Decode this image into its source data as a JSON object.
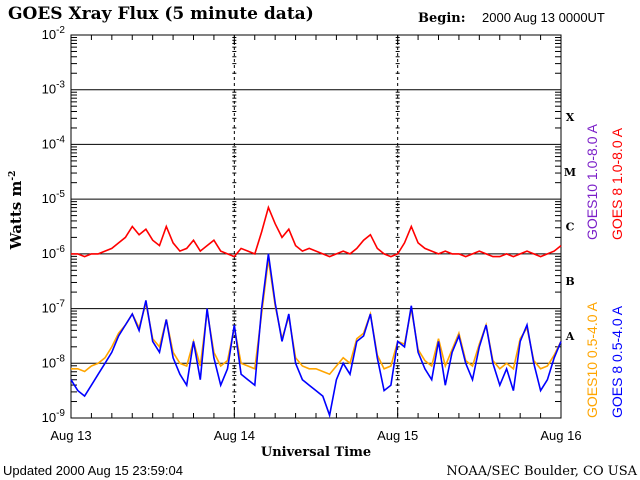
{
  "chart_data": {
    "type": "line",
    "title": "GOES Xray Flux (5 minute data)",
    "begin_label": "Begin:",
    "begin_value": "2000 Aug 13 0000UT",
    "xlabel": "Universal Time",
    "ylabel": "Watts m",
    "ylabel_exp": "-2",
    "yscale": "log",
    "ylim": [
      1e-09,
      0.01
    ],
    "y_ticks": [
      {
        "base": "10",
        "exp": "-2"
      },
      {
        "base": "10",
        "exp": "-3"
      },
      {
        "base": "10",
        "exp": "-4"
      },
      {
        "base": "10",
        "exp": "-5"
      },
      {
        "base": "10",
        "exp": "-6"
      },
      {
        "base": "10",
        "exp": "-7"
      },
      {
        "base": "10",
        "exp": "-8"
      },
      {
        "base": "10",
        "exp": "-9"
      }
    ],
    "x_ticks": [
      "Aug 13",
      "Aug 14",
      "Aug 15",
      "Aug 16"
    ],
    "xlim_hours": [
      0,
      72
    ],
    "grid": true,
    "flare_classes": [
      "X",
      "M",
      "C",
      "B",
      "A"
    ],
    "x_unit": "hours since 2000 Aug 13 0000UT",
    "series": [
      {
        "name": "GOES10 1.0-8.0 A",
        "color": "#7b1fc8",
        "values": []
      },
      {
        "name": "GOES 8 1.0-8.0 A",
        "color": "#ff0000",
        "log10_values": [
          -6.0,
          -6.0,
          -6.05,
          -6.0,
          -6.0,
          -5.95,
          -5.9,
          -5.8,
          -5.7,
          -5.5,
          -5.65,
          -5.55,
          -5.75,
          -5.85,
          -5.5,
          -5.8,
          -5.95,
          -5.9,
          -5.75,
          -5.95,
          -5.85,
          -5.75,
          -5.95,
          -6.0,
          -6.05,
          -5.9,
          -5.95,
          -6.0,
          -5.6,
          -5.15,
          -5.45,
          -5.7,
          -5.55,
          -5.85,
          -5.95,
          -5.9,
          -5.95,
          -6.0,
          -6.05,
          -6.0,
          -5.95,
          -6.0,
          -5.9,
          -5.75,
          -5.65,
          -5.9,
          -6.0,
          -6.05,
          -6.0,
          -5.8,
          -5.5,
          -5.8,
          -5.9,
          -5.95,
          -6.0,
          -5.95,
          -6.0,
          -6.0,
          -6.05,
          -6.0,
          -5.95,
          -6.0,
          -6.05,
          -6.05,
          -6.0,
          -6.05,
          -6.0,
          -5.95,
          -6.0,
          -6.05,
          -6.0,
          -5.95,
          -5.85
        ]
      },
      {
        "name": "GOES10 0.5-4.0 A",
        "color": "#ffa500",
        "log10_values": [
          -8.1,
          -8.1,
          -8.15,
          -8.05,
          -8.0,
          -7.9,
          -7.7,
          -7.45,
          -7.3,
          -7.1,
          -7.35,
          -6.9,
          -7.55,
          -7.7,
          -7.2,
          -7.8,
          -8.0,
          -8.05,
          -7.6,
          -8.05,
          -7.05,
          -7.8,
          -8.05,
          -7.95,
          -7.35,
          -8.0,
          -8.05,
          -8.1,
          -7.1,
          -6.1,
          -6.95,
          -7.55,
          -7.15,
          -7.9,
          -8.05,
          -8.1,
          -8.1,
          -8.15,
          -8.2,
          -8.05,
          -7.9,
          -8.0,
          -7.55,
          -7.45,
          -7.1,
          -7.85,
          -8.1,
          -8.05,
          -7.6,
          -7.65,
          -7.0,
          -7.75,
          -7.95,
          -8.05,
          -7.55,
          -8.05,
          -7.75,
          -7.45,
          -7.95,
          -8.05,
          -7.65,
          -7.3,
          -7.95,
          -8.1,
          -8.0,
          -8.1,
          -7.55,
          -7.35,
          -7.95,
          -8.1,
          -8.05,
          -7.85,
          -7.6
        ]
      },
      {
        "name": "GOES 8 0.5-4.0 A",
        "color": "#0000ff",
        "log10_values": [
          -8.3,
          -8.5,
          -8.6,
          -8.4,
          -8.2,
          -8.0,
          -7.8,
          -7.5,
          -7.3,
          -7.1,
          -7.4,
          -6.85,
          -7.6,
          -7.8,
          -7.2,
          -7.9,
          -8.2,
          -8.4,
          -7.6,
          -8.3,
          -7.0,
          -7.9,
          -8.4,
          -8.1,
          -7.3,
          -8.2,
          -8.3,
          -8.4,
          -7.0,
          -6.0,
          -6.9,
          -7.6,
          -7.1,
          -8.0,
          -8.3,
          -8.4,
          -8.5,
          -8.6,
          -8.95,
          -8.3,
          -8.0,
          -8.2,
          -7.6,
          -7.5,
          -7.1,
          -7.9,
          -8.5,
          -8.4,
          -7.6,
          -7.7,
          -6.95,
          -7.8,
          -8.1,
          -8.3,
          -7.6,
          -8.4,
          -7.8,
          -7.5,
          -8.0,
          -8.3,
          -7.7,
          -7.3,
          -8.0,
          -8.4,
          -8.1,
          -8.5,
          -7.6,
          -7.3,
          -8.0,
          -8.5,
          -8.3,
          -7.9,
          -7.6
        ]
      }
    ]
  },
  "footer": {
    "updated": "Updated 2000 Aug 15 23:59:04",
    "source": "NOAA/SEC Boulder, CO USA"
  }
}
